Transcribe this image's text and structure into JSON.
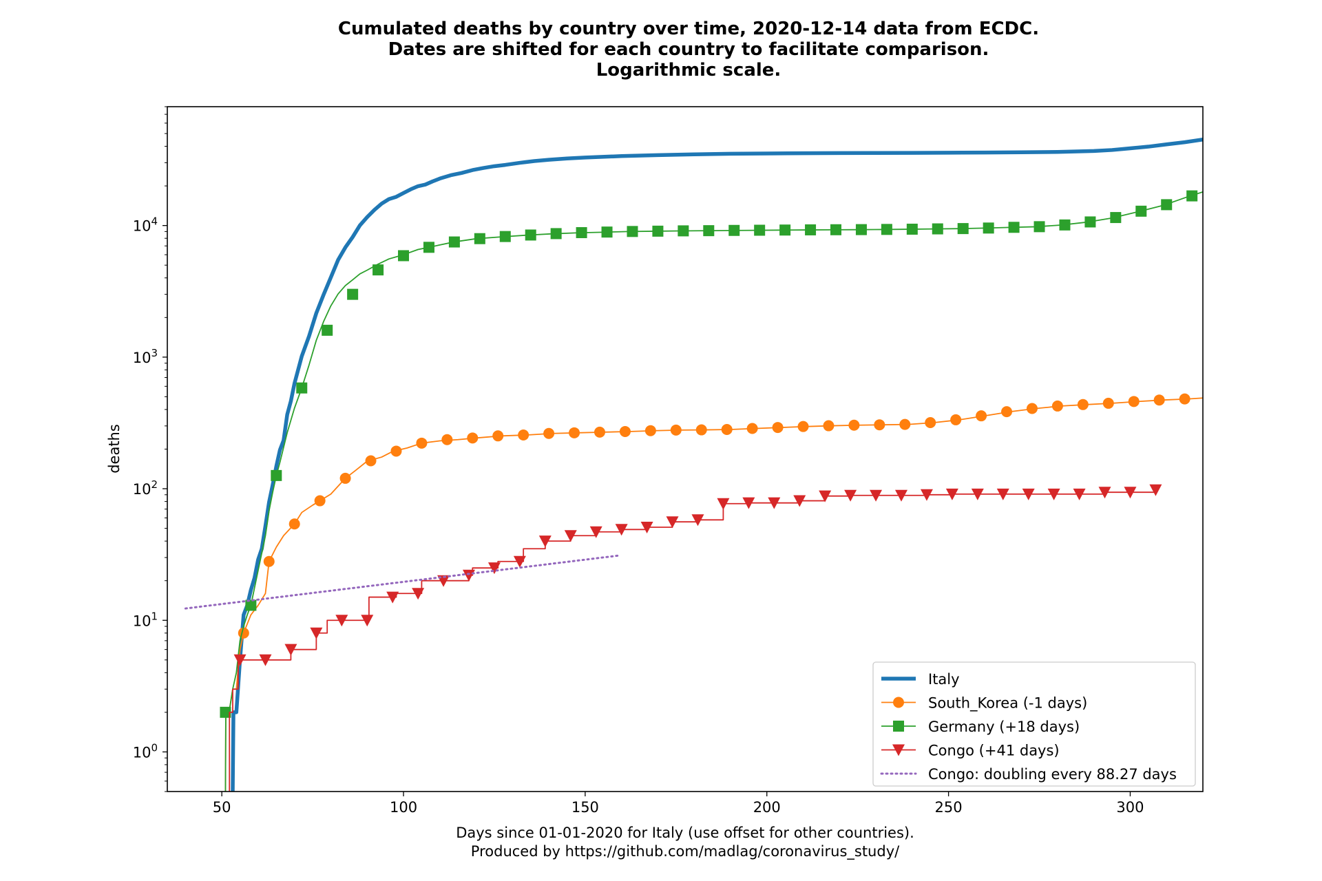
{
  "chart_data": {
    "type": "line",
    "title_lines": [
      "Cumulated deaths by country over time, 2020-12-14 data from ECDC.",
      "Dates are shifted for each country to facilitate comparison.",
      "Logarithmic scale."
    ],
    "xlabel_lines": [
      "Days since 01-01-2020 for Italy (use offset for other countries).",
      "Produced by https://github.com/madlag/coronavirus_study/"
    ],
    "ylabel": "deaths",
    "xlim": [
      35,
      320
    ],
    "ylim": [
      0.5,
      80000
    ],
    "yscale": "log",
    "x_ticks": [
      50,
      100,
      150,
      200,
      250,
      300
    ],
    "y_ticks": [
      {
        "value": 1,
        "base": "10",
        "exp": "0"
      },
      {
        "value": 10,
        "base": "10",
        "exp": "1"
      },
      {
        "value": 100,
        "base": "10",
        "exp": "2"
      },
      {
        "value": 1000,
        "base": "10",
        "exp": "3"
      },
      {
        "value": 10000,
        "base": "10",
        "exp": "4"
      }
    ],
    "grid": false,
    "legend_position": "lower-right",
    "series": [
      {
        "name": "Italy",
        "color": "#1f77b4",
        "marker": "none",
        "line": "solid-thick",
        "x": [
          53,
          53.2,
          54,
          55,
          56,
          57,
          58,
          59,
          60,
          61,
          62,
          63,
          64,
          65,
          66,
          67,
          68,
          69,
          70,
          72,
          74,
          76,
          78,
          80,
          82,
          84,
          86,
          88,
          90,
          92,
          94,
          96,
          98,
          100,
          102,
          104,
          106,
          108,
          110,
          113,
          116,
          119,
          122,
          125,
          128,
          132,
          136,
          140,
          145,
          150,
          160,
          170,
          180,
          190,
          200,
          210,
          220,
          230,
          240,
          250,
          260,
          270,
          280,
          290,
          295,
          300,
          305,
          310,
          315,
          320
        ],
        "y": [
          0.5,
          2,
          2,
          5,
          11,
          13,
          17,
          21,
          29,
          35,
          52,
          79,
          107,
          148,
          197,
          233,
          366,
          463,
          631,
          1016,
          1441,
          2158,
          2978,
          4032,
          5476,
          6820,
          8165,
          10023,
          11591,
          13155,
          14681,
          15887,
          16523,
          17669,
          18849,
          19899,
          20465,
          21645,
          22745,
          24114,
          25085,
          26384,
          27359,
          28236,
          28884,
          29958,
          30911,
          31610,
          32330,
          32877,
          33689,
          34301,
          34767,
          35097,
          35267,
          35441,
          35541,
          35577,
          35645,
          35771,
          35875,
          36034,
          36246,
          36832,
          37488,
          38618,
          39764,
          41394,
          42953,
          45000
        ]
      },
      {
        "name": "South_Korea (-1 days)",
        "color": "#ff7f0e",
        "marker": "circle",
        "line": "solid",
        "x": [
          51,
          51.1,
          52,
          53,
          54,
          55,
          56,
          58,
          60,
          62,
          63,
          65,
          67,
          70,
          72,
          75,
          77,
          80,
          84,
          87,
          90,
          94,
          97,
          101,
          105,
          110,
          115,
          120,
          127,
          134,
          141,
          148,
          155,
          162,
          169,
          176,
          183,
          190,
          197,
          204,
          211,
          218,
          225,
          232,
          239,
          246,
          253,
          260,
          267,
          274,
          281,
          288,
          295,
          302,
          309,
          316,
          320
        ],
        "y": [
          0.5,
          2,
          2,
          3,
          3,
          6,
          8,
          11,
          13,
          16,
          28,
          36,
          44,
          54,
          66,
          75,
          81,
          91,
          120,
          139,
          162,
          174,
          192,
          204,
          222,
          231,
          236,
          243,
          252,
          256,
          263,
          266,
          269,
          272,
          276,
          279,
          280,
          282,
          287,
          292,
          297,
          301,
          304,
          306,
          308,
          318,
          334,
          358,
          385,
          407,
          425,
          436,
          446,
          460,
          472,
          481,
          489
        ],
        "markers_x": [
          56,
          63,
          70,
          77,
          84,
          91,
          98,
          105,
          112,
          119,
          126,
          133,
          140,
          147,
          154,
          161,
          168,
          175,
          182,
          189,
          196,
          203,
          210,
          217,
          224,
          231,
          238,
          245,
          252,
          259,
          266,
          273,
          280,
          287,
          294,
          301,
          308,
          315
        ],
        "markers_y": [
          8,
          28,
          54,
          81,
          120,
          163,
          193,
          222,
          236,
          243,
          252,
          256,
          263,
          266,
          269,
          272,
          276,
          279,
          280,
          282,
          287,
          292,
          297,
          301,
          304,
          306,
          308,
          318,
          334,
          358,
          385,
          407,
          425,
          436,
          446,
          460,
          472,
          481
        ]
      },
      {
        "name": "Germany (+18 days)",
        "color": "#2ca02c",
        "marker": "square",
        "line": "solid",
        "x": [
          51,
          51.1,
          52,
          53,
          54,
          55,
          56,
          57,
          58,
          60,
          62,
          63,
          64,
          65,
          66,
          68,
          70,
          72,
          74,
          76,
          78,
          80,
          82,
          84,
          86,
          88,
          90,
          93,
          96,
          100,
          104,
          107,
          110,
          114,
          120,
          127,
          134,
          141,
          148,
          155,
          162,
          169,
          176,
          183,
          190,
          197,
          204,
          211,
          218,
          225,
          232,
          239,
          246,
          253,
          260,
          267,
          274,
          281,
          288,
          295,
          302,
          309,
          316,
          320
        ],
        "y": [
          0.5,
          2,
          2,
          3,
          4,
          7,
          9,
          11,
          13,
          24,
          44,
          68,
          94,
          126,
          159,
          267,
          410,
          583,
          870,
          1342,
          1861,
          2451,
          3022,
          3495,
          3868,
          4292,
          4580,
          5086,
          5575,
          6000,
          6575,
          6831,
          7119,
          7510,
          7940,
          8200,
          8450,
          8650,
          8800,
          8900,
          9000,
          9050,
          9100,
          9130,
          9170,
          9200,
          9230,
          9260,
          9280,
          9300,
          9330,
          9370,
          9420,
          9470,
          9560,
          9680,
          9790,
          10080,
          10600,
          11400,
          12700,
          14200,
          16600,
          18000
        ],
        "markers_x": [
          51,
          58,
          65,
          72,
          79,
          86,
          93,
          100,
          107,
          114,
          121,
          128,
          135,
          142,
          149,
          156,
          163,
          170,
          177,
          184,
          191,
          198,
          205,
          212,
          219,
          226,
          233,
          240,
          247,
          254,
          261,
          268,
          275,
          282,
          289,
          296,
          303,
          310,
          317
        ],
        "markers_y": [
          2,
          13,
          126,
          583,
          1600,
          3000,
          4600,
          5900,
          6830,
          7500,
          7950,
          8250,
          8470,
          8680,
          8830,
          8920,
          9010,
          9060,
          9110,
          9140,
          9180,
          9210,
          9240,
          9270,
          9290,
          9310,
          9340,
          9380,
          9430,
          9480,
          9570,
          9690,
          9800,
          10100,
          10650,
          11500,
          12850,
          14400,
          16800
        ]
      },
      {
        "name": "Congo (+41 days)",
        "color": "#d62728",
        "marker": "triangle-down",
        "line": "step",
        "x": [
          52,
          52.1,
          53,
          54,
          54.5,
          55,
          62,
          69,
          69.5,
          72,
          76,
          76.5,
          79,
          83,
          90,
          90.5,
          97,
          98,
          104,
          105,
          111,
          112,
          118,
          119,
          125,
          126,
          132,
          133,
          139,
          140,
          146,
          153,
          160,
          167,
          174,
          181,
          188,
          189,
          195,
          202,
          209,
          216,
          223,
          230,
          237,
          244,
          251,
          258,
          265,
          272,
          279,
          286,
          293,
          300,
          307
        ],
        "y": [
          0.5,
          2,
          3,
          3,
          5,
          5,
          5,
          6,
          6,
          6,
          8,
          8,
          10,
          10,
          10,
          15,
          15,
          16,
          16,
          20,
          20,
          20,
          22,
          25,
          25,
          28,
          28,
          35,
          40,
          40,
          44,
          47,
          49,
          51,
          56,
          58,
          77,
          77,
          78,
          78,
          81,
          88,
          89,
          89,
          89,
          90,
          91,
          91,
          91,
          91,
          91,
          91,
          94,
          94,
          98
        ],
        "markers_x": [
          55,
          62,
          69,
          76,
          83,
          90,
          97,
          104,
          111,
          118,
          125,
          132,
          139,
          146,
          153,
          160,
          167,
          174,
          181,
          188,
          195,
          202,
          209,
          216,
          223,
          230,
          237,
          244,
          251,
          258,
          265,
          272,
          279,
          286,
          293,
          300,
          307
        ],
        "markers_y": [
          5,
          5,
          6,
          8,
          10,
          10,
          15,
          16,
          20,
          22,
          25,
          28,
          40,
          44,
          47,
          49,
          51,
          56,
          58,
          77,
          78,
          78,
          81,
          88,
          89,
          89,
          89,
          90,
          91,
          91,
          91,
          91,
          91,
          91,
          94,
          94,
          98
        ]
      },
      {
        "name": "Congo: doubling every 88.27 days",
        "color": "#9467bd",
        "marker": "none",
        "line": "dotted",
        "x": [
          40,
          159
        ],
        "y": [
          12.3,
          31
        ]
      }
    ]
  }
}
